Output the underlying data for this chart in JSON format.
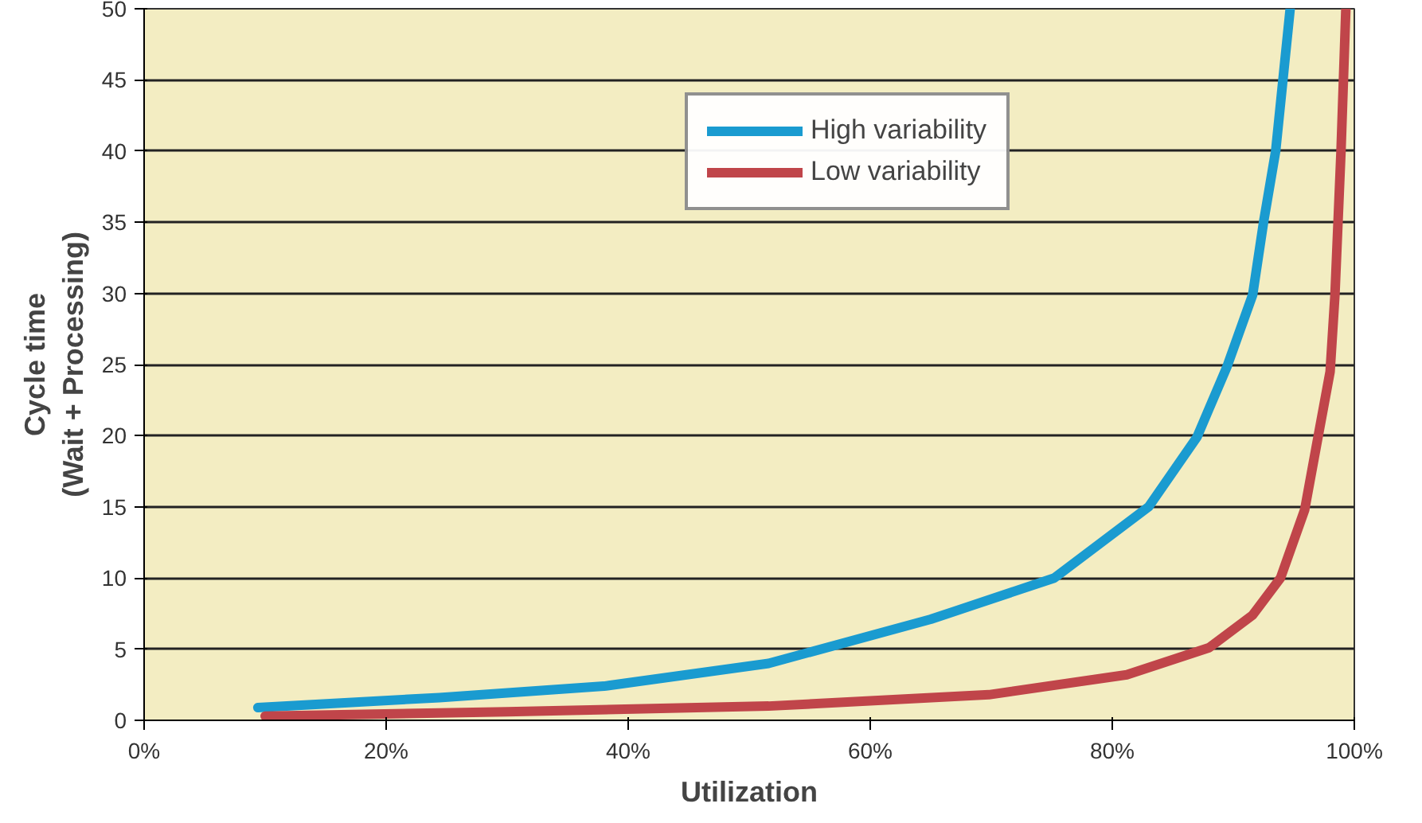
{
  "chart_data": {
    "type": "line",
    "xlabel": "Utilization",
    "ylabel": "Cycle time\n(Wait + Processing)",
    "xlim": [
      0,
      100
    ],
    "ylim": [
      0,
      50
    ],
    "xticks": [
      {
        "value": 0,
        "label": "0%"
      },
      {
        "value": 20,
        "label": "20%"
      },
      {
        "value": 40,
        "label": "40%"
      },
      {
        "value": 60,
        "label": "60%"
      },
      {
        "value": 80,
        "label": "80%"
      },
      {
        "value": 100,
        "label": "100%"
      }
    ],
    "yticks": [
      0,
      5,
      10,
      15,
      20,
      25,
      30,
      35,
      40,
      45,
      50
    ],
    "grid": "y",
    "legend": "top right",
    "line_style": "solid",
    "marker": "none",
    "series": [
      {
        "name": "High variability",
        "color": "#1a9bd0",
        "x": [
          9.4,
          24.4,
          38,
          51.6,
          65,
          75.2,
          83,
          87,
          89.5,
          91.6,
          92.5,
          93.5,
          94.1,
          94.7
        ],
        "values": [
          0.9,
          1.6,
          2.4,
          4.0,
          7.1,
          10,
          15,
          19.9,
          24.9,
          29.9,
          35,
          40,
          45,
          50
        ]
      },
      {
        "name": "Low variability",
        "color": "#c0454a",
        "x": [
          10,
          30,
          51.6,
          69.8,
          81.2,
          88,
          91.6,
          93.9,
          95.9,
          97,
          98,
          98.4,
          98.9,
          99.3
        ],
        "values": [
          0.3,
          0.6,
          1.0,
          1.8,
          3.2,
          5.1,
          7.4,
          10,
          14.8,
          19.9,
          24.5,
          29.9,
          40,
          50
        ]
      }
    ]
  }
}
